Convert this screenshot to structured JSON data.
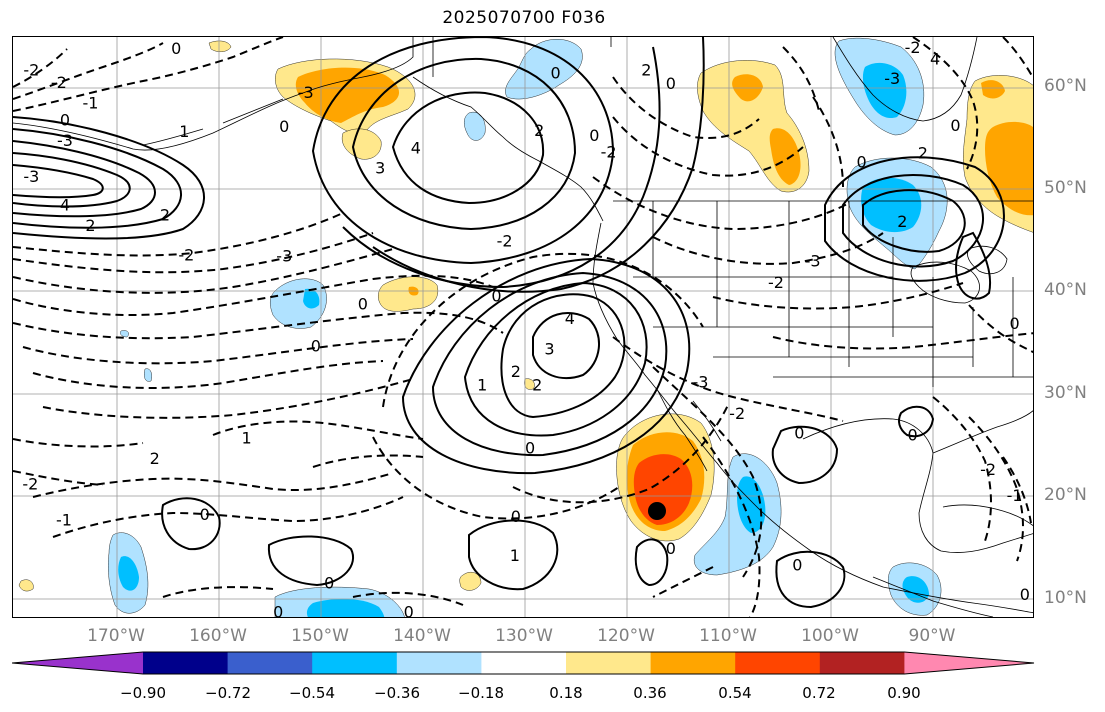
{
  "title": "2025070700 F036",
  "lat_labels": [
    "60°N",
    "50°N",
    "40°N",
    "30°N",
    "20°N",
    "10°N"
  ],
  "lon_labels": [
    "170°W",
    "160°W",
    "150°W",
    "140°W",
    "130°W",
    "120°W",
    "110°W",
    "100°W",
    "90°W"
  ],
  "colorbar": {
    "ticks": [
      "−0.90",
      "−0.72",
      "−0.54",
      "−0.36",
      "−0.18",
      "0.18",
      "0.36",
      "0.54",
      "0.72",
      "0.90"
    ],
    "bins": [
      {
        "color": "#9932cc",
        "range": "< −0.90"
      },
      {
        "color": "#00008b",
        "range": "−0.90 to −0.72"
      },
      {
        "color": "#3a5fcd",
        "range": "−0.72 to −0.54"
      },
      {
        "color": "#00bfff",
        "range": "−0.54 to −0.36"
      },
      {
        "color": "#b0e2ff",
        "range": "−0.36 to −0.18"
      },
      {
        "color": "#ffffff",
        "range": "−0.18 to 0.18"
      },
      {
        "color": "#ffe88c",
        "range": "0.18 to 0.36"
      },
      {
        "color": "#ffa500",
        "range": "0.36 to 0.54"
      },
      {
        "color": "#ff4500",
        "range": "0.54 to 0.72"
      },
      {
        "color": "#b22222",
        "range": "0.72 to 0.90"
      },
      {
        "color": "#ff88b0",
        "range": "> 0.90"
      }
    ]
  },
  "contour_labels": [
    {
      "text": "-2",
      "lon": -178.4,
      "lat": 61.8
    },
    {
      "text": "-2",
      "lon": -175.7,
      "lat": 60.6
    },
    {
      "text": "-1",
      "lon": -172.6,
      "lat": 58.6
    },
    {
      "text": "0",
      "lon": -175.1,
      "lat": 56.9
    },
    {
      "text": "-3",
      "lon": -175.1,
      "lat": 54.9
    },
    {
      "text": "1",
      "lon": -163.4,
      "lat": 55.8
    },
    {
      "text": "0",
      "lon": -153.6,
      "lat": 56.3
    },
    {
      "text": "-3",
      "lon": -178.4,
      "lat": 51.4
    },
    {
      "text": "4",
      "lon": -175.1,
      "lat": 48.6
    },
    {
      "text": "2",
      "lon": -172.6,
      "lat": 46.6
    },
    {
      "text": "2",
      "lon": -165.3,
      "lat": 47.6
    },
    {
      "text": "-2",
      "lon": -163.2,
      "lat": 43.7
    },
    {
      "text": "-3",
      "lon": -153.6,
      "lat": 43.6
    },
    {
      "text": "0",
      "lon": -150.5,
      "lat": 34.8
    },
    {
      "text": "2",
      "lon": -166.3,
      "lat": 23.8
    },
    {
      "text": "1",
      "lon": -157.3,
      "lat": 25.8
    },
    {
      "text": "-2",
      "lon": -178.5,
      "lat": 21.3
    },
    {
      "text": "-1",
      "lon": -175.2,
      "lat": 17.8
    },
    {
      "text": "0",
      "lon": -161.4,
      "lat": 18.3
    },
    {
      "text": "0",
      "lon": -149.2,
      "lat": 11.6
    },
    {
      "text": "0",
      "lon": -154.2,
      "lat": 8.8
    },
    {
      "text": "0",
      "lon": -141.4,
      "lat": 8.8
    },
    {
      "text": "0",
      "lon": -164.2,
      "lat": 63.9
    },
    {
      "text": "-3",
      "lon": -151.5,
      "lat": 59.6
    },
    {
      "text": "3",
      "lon": -144.2,
      "lat": 52.2
    },
    {
      "text": "4",
      "lon": -140.7,
      "lat": 54.2
    },
    {
      "text": "2",
      "lon": -128.6,
      "lat": 55.9
    },
    {
      "text": "0",
      "lon": -127.0,
      "lat": 61.5
    },
    {
      "text": "2",
      "lon": -118.1,
      "lat": 61.8
    },
    {
      "text": "0",
      "lon": -115.7,
      "lat": 60.5
    },
    {
      "text": "0",
      "lon": -123.2,
      "lat": 55.4
    },
    {
      "text": "-2",
      "lon": -121.8,
      "lat": 53.8
    },
    {
      "text": "-2",
      "lon": -132.0,
      "lat": 45.1
    },
    {
      "text": "0",
      "lon": -132.8,
      "lat": 39.7
    },
    {
      "text": "4",
      "lon": -125.6,
      "lat": 37.5
    },
    {
      "text": "3",
      "lon": -127.6,
      "lat": 34.5
    },
    {
      "text": "2",
      "lon": -130.9,
      "lat": 32.3
    },
    {
      "text": "2",
      "lon": -128.8,
      "lat": 31.0
    },
    {
      "text": "1",
      "lon": -134.2,
      "lat": 31.0
    },
    {
      "text": "0",
      "lon": -129.5,
      "lat": 24.8
    },
    {
      "text": "0",
      "lon": -130.9,
      "lat": 18.1
    },
    {
      "text": "1",
      "lon": -131.0,
      "lat": 14.3
    },
    {
      "text": "0",
      "lon": -145.9,
      "lat": 38.9
    },
    {
      "text": "0",
      "lon": -115.7,
      "lat": 15.0
    },
    {
      "text": "-3",
      "lon": -112.8,
      "lat": 31.3
    },
    {
      "text": "-2",
      "lon": -109.2,
      "lat": 28.2
    },
    {
      "text": "0",
      "lon": -103.1,
      "lat": 26.3
    },
    {
      "text": "0",
      "lon": -103.3,
      "lat": 13.4
    },
    {
      "text": "0",
      "lon": -92.0,
      "lat": 26.1
    },
    {
      "text": "-2",
      "lon": -84.6,
      "lat": 22.7
    },
    {
      "text": "-1",
      "lon": -82.0,
      "lat": 20.2
    },
    {
      "text": "0",
      "lon": -81.0,
      "lat": 10.5
    },
    {
      "text": "-2",
      "lon": -92.0,
      "lat": 64.0
    },
    {
      "text": "4",
      "lon": -89.8,
      "lat": 62.9
    },
    {
      "text": "-3",
      "lon": -94.0,
      "lat": 61.0
    },
    {
      "text": "0",
      "lon": -87.8,
      "lat": 56.4
    },
    {
      "text": "2",
      "lon": -91.0,
      "lat": 53.7
    },
    {
      "text": "0",
      "lon": -97.0,
      "lat": 52.8
    },
    {
      "text": "2",
      "lon": -93.0,
      "lat": 47.0
    },
    {
      "text": "0",
      "lon": -82.0,
      "lat": 37.0
    },
    {
      "text": "-2",
      "lon": -105.4,
      "lat": 41.0
    },
    {
      "text": "-3",
      "lon": -101.8,
      "lat": 43.1
    }
  ]
}
